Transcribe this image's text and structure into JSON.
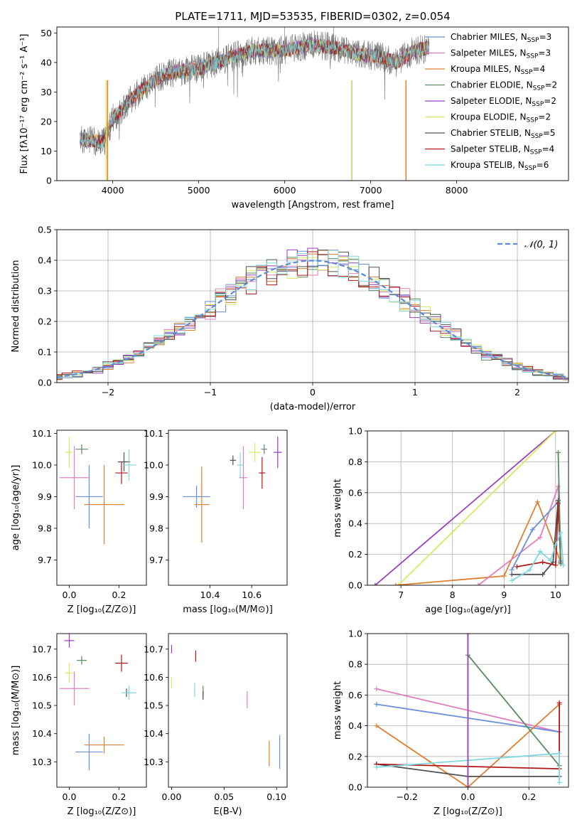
{
  "figure_title": "PLATE=1711, MJD=53535, FIBERID=0302, z=0.054",
  "chart_data": [
    {
      "id": "spectrum",
      "type": "line",
      "title": "PLATE=1711, MJD=53535, FIBERID=0302, z=0.054",
      "xlabel": "wavelength [Angstrom, rest frame]",
      "ylabel": "Flux [fλ10⁻¹⁷ erg cm⁻² s⁻¹ A⁻¹]",
      "xlim": [
        3350,
        9300
      ],
      "ylim": [
        0,
        52
      ],
      "xticks": [
        4000,
        5000,
        6000,
        7000,
        8000
      ],
      "yticks": [
        0,
        10,
        20,
        30,
        40,
        50
      ],
      "grid": false,
      "legend_position": "right",
      "data_range": [
        3620,
        7680
      ],
      "continuum": [
        [
          3620,
          14
        ],
        [
          3900,
          13
        ],
        [
          4000,
          21
        ],
        [
          4300,
          30
        ],
        [
          4600,
          36
        ],
        [
          5000,
          38
        ],
        [
          5200,
          40
        ],
        [
          5600,
          44
        ],
        [
          6000,
          44
        ],
        [
          6300,
          46
        ],
        [
          6600,
          45
        ],
        [
          6800,
          43
        ],
        [
          7100,
          42
        ],
        [
          7300,
          40
        ],
        [
          7500,
          44
        ],
        [
          7680,
          45
        ]
      ],
      "series": [
        {
          "name": "Chabrier MILES, N_SSP=3",
          "color": "#6a8fd8"
        },
        {
          "name": "Salpeter MILES, N_SSP=3",
          "color": "#e07fbf"
        },
        {
          "name": "Kroupa MILES, N_SSP=4",
          "color": "#e07f2f"
        },
        {
          "name": "Chabrier ELODIE, N_SSP=2",
          "color": "#5a8a5f"
        },
        {
          "name": "Salpeter ELODIE, N_SSP=2",
          "color": "#9a3fbf"
        },
        {
          "name": "Kroupa ELODIE, N_SSP=2",
          "color": "#d8e85f"
        },
        {
          "name": "Chabrier STELIB, N_SSP=5",
          "color": "#505050"
        },
        {
          "name": "Salpeter STELIB, N_SSP=4",
          "color": "#b01818"
        },
        {
          "name": "Kroupa STELIB, N_SSP=6",
          "color": "#7fd8e0"
        }
      ]
    },
    {
      "id": "residuals",
      "type": "line",
      "xlabel": "(data-model)/error",
      "ylabel": "Normed distribution",
      "xlim": [
        -2.5,
        2.5
      ],
      "ylim": [
        0,
        0.5
      ],
      "xticks": [
        -2,
        -1,
        0,
        1,
        2
      ],
      "yticks": [
        0,
        0.1,
        0.2,
        0.3,
        0.4,
        0.5
      ],
      "grid": true,
      "legend_position": "top-right",
      "legend_label": "𝒩(0, 1)",
      "normal_color": "#5b8ad8",
      "hist_colors": [
        "#6a8fd8",
        "#e07fbf",
        "#e07f2f",
        "#5a8a5f",
        "#9a3fbf",
        "#d8e85f",
        "#505050",
        "#b01818",
        "#7fd8e0"
      ],
      "bin_width": 0.1
    },
    {
      "id": "age-vs-Z",
      "type": "scatter",
      "xlabel": "Z [log₁₀(Z/Z⊙)]",
      "ylabel": "age  [log₁₀(age/yr)]",
      "xlim": [
        -0.05,
        0.31
      ],
      "ylim": [
        9.62,
        10.11
      ],
      "xticks": [
        0.0,
        0.2
      ],
      "yticks": [
        9.7,
        9.8,
        9.9,
        10.0,
        10.1
      ],
      "grid": false,
      "points": [
        {
          "color": "#6a8fd8",
          "x": 0.08,
          "y": 9.9,
          "xe": 0.11,
          "ye": 0.2
        },
        {
          "color": "#e07fbf",
          "x": 0.02,
          "y": 9.96,
          "xe": 0.12,
          "ye": 0.2
        },
        {
          "color": "#e07f2f",
          "x": 0.14,
          "y": 9.875,
          "xe": 0.16,
          "ye": 0.25
        },
        {
          "color": "#5a8a5f",
          "x": 0.05,
          "y": 10.05,
          "xe": 0.05,
          "ye": 0.03
        },
        {
          "color": "#9a3fbf",
          "x": 0.0,
          "y": 10.04,
          "xe": 0.0,
          "ye": 0.02
        },
        {
          "color": "#d8e85f",
          "x": 0.0,
          "y": 10.04,
          "xe": 0.03,
          "ye": 0.1
        },
        {
          "color": "#505050",
          "x": 0.22,
          "y": 10.01,
          "xe": 0.05,
          "ye": 0.06
        },
        {
          "color": "#b01818",
          "x": 0.21,
          "y": 9.975,
          "xe": 0.05,
          "ye": 0.07
        },
        {
          "color": "#7fd8e0",
          "x": 0.24,
          "y": 10.0,
          "xe": 0.06,
          "ye": 0.1
        }
      ]
    },
    {
      "id": "age-vs-mass",
      "type": "scatter",
      "xlabel": "mass [log₁₀(M/M⊙)]",
      "ylabel": "",
      "xlim": [
        10.2,
        10.77
      ],
      "ylim": [
        9.62,
        10.11
      ],
      "xticks": [
        10.4,
        10.6
      ],
      "yticks": [
        9.7,
        9.8,
        9.9,
        10.0,
        10.1
      ],
      "grid": false,
      "points": [
        {
          "color": "#6a8fd8",
          "x": 10.335,
          "y": 9.9,
          "xe": 0.13,
          "ye": 0.07
        },
        {
          "color": "#e07fbf",
          "x": 10.56,
          "y": 9.96,
          "xe": 0.04,
          "ye": 0.2
        },
        {
          "color": "#e07f2f",
          "x": 10.36,
          "y": 9.875,
          "xe": 0.07,
          "ye": 0.24
        },
        {
          "color": "#5a8a5f",
          "x": 10.66,
          "y": 10.05,
          "xe": 0.03,
          "ye": 0.03
        },
        {
          "color": "#9a3fbf",
          "x": 10.725,
          "y": 10.04,
          "xe": 0.04,
          "ye": 0.1
        },
        {
          "color": "#d8e85f",
          "x": 10.615,
          "y": 10.04,
          "xe": 0.06,
          "ye": 0.06
        },
        {
          "color": "#505050",
          "x": 10.51,
          "y": 10.015,
          "xe": 0.03,
          "ye": 0.03
        },
        {
          "color": "#b01818",
          "x": 10.65,
          "y": 9.975,
          "xe": 0.03,
          "ye": 0.1
        },
        {
          "color": "#7fd8e0",
          "x": 10.545,
          "y": 10.0,
          "xe": 0.03,
          "ye": 0.08
        }
      ]
    },
    {
      "id": "massweight-vs-age",
      "type": "line",
      "xlabel": "age  [log₁₀(age/yr)]",
      "ylabel": "mass weight",
      "xlim": [
        6.35,
        10.25
      ],
      "ylim": [
        0,
        1.0
      ],
      "xticks": [
        7,
        8,
        9,
        10
      ],
      "yticks": [
        0,
        0.2,
        0.4,
        0.6,
        0.8,
        1.0
      ],
      "grid": true,
      "series": [
        {
          "color": "#9a3fbf",
          "x": [
            6.5,
            10.0
          ],
          "y": [
            0.0,
            1.0
          ]
        },
        {
          "color": "#d8e85f",
          "x": [
            6.95,
            10.0
          ],
          "y": [
            0.0,
            1.0
          ]
        },
        {
          "color": "#e07f2f",
          "x": [
            6.9,
            9.0,
            9.65,
            10.1
          ],
          "y": [
            0.0,
            0.06,
            0.54,
            0.15
          ]
        },
        {
          "color": "#e07fbf",
          "x": [
            8.5,
            9.7,
            10.05,
            10.1
          ],
          "y": [
            0.0,
            0.31,
            0.64,
            0.15
          ]
        },
        {
          "color": "#6a8fd8",
          "x": [
            9.15,
            9.55,
            10.05,
            10.1
          ],
          "y": [
            0.1,
            0.36,
            0.54,
            0.16
          ]
        },
        {
          "color": "#505050",
          "x": [
            9.15,
            9.75,
            9.95,
            10.05,
            10.1
          ],
          "y": [
            0.07,
            0.07,
            0.15,
            0.55,
            0.14
          ]
        },
        {
          "color": "#b01818",
          "x": [
            9.25,
            9.75,
            10.0,
            10.05,
            10.1
          ],
          "y": [
            0.12,
            0.15,
            0.13,
            0.53,
            0.15
          ]
        },
        {
          "color": "#5a8a5f",
          "x": [
            10.05,
            10.1
          ],
          "y": [
            0.86,
            0.14
          ]
        },
        {
          "color": "#7fd8e0",
          "x": [
            9.15,
            9.5,
            9.7,
            9.9,
            10.0,
            10.1,
            10.15
          ],
          "y": [
            0.03,
            0.1,
            0.22,
            0.16,
            0.26,
            0.34,
            0.13
          ]
        }
      ]
    },
    {
      "id": "mass-vs-Z",
      "type": "scatter",
      "xlabel": "Z [log₁₀(Z/Z⊙)]",
      "ylabel": "mass [log₁₀(M/M⊙)]",
      "xlim": [
        -0.05,
        0.31
      ],
      "ylim": [
        10.21,
        10.755
      ],
      "xticks": [
        0.0,
        0.2
      ],
      "yticks": [
        10.3,
        10.4,
        10.5,
        10.6,
        10.7
      ],
      "grid": false,
      "points": [
        {
          "color": "#6a8fd8",
          "x": 0.08,
          "y": 10.335,
          "xe": 0.11,
          "ye": 0.13
        },
        {
          "color": "#e07fbf",
          "x": 0.02,
          "y": 10.56,
          "xe": 0.12,
          "ye": 0.12
        },
        {
          "color": "#e07f2f",
          "x": 0.14,
          "y": 10.36,
          "xe": 0.16,
          "ye": 0.06
        },
        {
          "color": "#5a8a5f",
          "x": 0.05,
          "y": 10.66,
          "xe": 0.04,
          "ye": 0.03
        },
        {
          "color": "#9a3fbf",
          "x": 0.0,
          "y": 10.73,
          "xe": 0.04,
          "ye": 0.05
        },
        {
          "color": "#d8e85f",
          "x": 0.0,
          "y": 10.615,
          "xe": 0.03,
          "ye": 0.07
        },
        {
          "color": "#505050",
          "x": 0.23,
          "y": 10.545,
          "xe": 0.0,
          "ye": 0.03
        },
        {
          "color": "#b01818",
          "x": 0.21,
          "y": 10.65,
          "xe": 0.05,
          "ye": 0.06
        },
        {
          "color": "#7fd8e0",
          "x": 0.24,
          "y": 10.545,
          "xe": 0.06,
          "ye": 0.05
        }
      ]
    },
    {
      "id": "mass-vs-EBV",
      "type": "scatter",
      "xlabel": "E(B-V)",
      "ylabel": "",
      "xlim": [
        -0.003,
        0.11
      ],
      "ylim": [
        10.21,
        10.755
      ],
      "xticks": [
        0.0,
        0.05,
        0.1
      ],
      "yticks": [
        10.3,
        10.4,
        10.5,
        10.6,
        10.7
      ],
      "grid": false,
      "points": [
        {
          "color": "#6a8fd8",
          "x": 0.103,
          "y": 10.335,
          "xe": 0.0,
          "ye": 0.12
        },
        {
          "color": "#e07fbf",
          "x": 0.072,
          "y": 10.52,
          "xe": 0.0,
          "ye": 0.06
        },
        {
          "color": "#e07f2f",
          "x": 0.093,
          "y": 10.33,
          "xe": 0.0,
          "ye": 0.09
        },
        {
          "color": "#5a8a5f",
          "x": 0.03,
          "y": 10.55,
          "xe": 0.0,
          "ye": 0.04
        },
        {
          "color": "#9a3fbf",
          "x": 0.0,
          "y": 10.7,
          "xe": 0.0,
          "ye": 0.03
        },
        {
          "color": "#d8e85f",
          "x": 0.0,
          "y": 10.58,
          "xe": 0.0,
          "ye": 0.04
        },
        {
          "color": "#505050",
          "x": 0.03,
          "y": 10.535,
          "xe": 0.0,
          "ye": 0.03
        },
        {
          "color": "#b01818",
          "x": 0.023,
          "y": 10.675,
          "xe": 0.0,
          "ye": 0.04
        },
        {
          "color": "#7fd8e0",
          "x": 0.022,
          "y": 10.555,
          "xe": 0.0,
          "ye": 0.05
        }
      ]
    },
    {
      "id": "massweight-vs-Z",
      "type": "line",
      "xlabel": "Z [log₁₀(Z/Z⊙)]",
      "ylabel": "mass weight",
      "xlim": [
        -0.33,
        0.33
      ],
      "ylim": [
        0,
        1.0
      ],
      "xticks": [
        -0.2,
        0.0,
        0.2
      ],
      "yticks": [
        0,
        0.2,
        0.4,
        0.6,
        0.8,
        1.0
      ],
      "grid": true,
      "series": [
        {
          "color": "#e07fbf",
          "x": [
            -0.3,
            0.3
          ],
          "y": [
            0.64,
            0.36
          ]
        },
        {
          "color": "#6a8fd8",
          "x": [
            -0.3,
            0.3
          ],
          "y": [
            0.54,
            0.36
          ]
        },
        {
          "color": "#e07f2f",
          "x": [
            -0.3,
            0.0,
            0.3
          ],
          "y": [
            0.4,
            0.0,
            0.54
          ]
        },
        {
          "color": "#5a8a5f",
          "x": [
            0.0,
            0.3
          ],
          "y": [
            0.86,
            0.14
          ]
        },
        {
          "color": "#d8e85f",
          "x": [
            0.0,
            0.0
          ],
          "y": [
            0.0,
            1.0
          ]
        },
        {
          "color": "#505050",
          "x": [
            -0.3,
            0.0,
            0.3
          ],
          "y": [
            0.15,
            0.07,
            0.07
          ]
        },
        {
          "color": "#b01818",
          "x": [
            -0.3,
            0.3,
            0.3,
            0.3
          ],
          "y": [
            0.15,
            0.12,
            0.55,
            0.12
          ]
        },
        {
          "color": "#7fd8e0",
          "x": [
            -0.3,
            0.3,
            0.3
          ],
          "y": [
            0.13,
            0.22,
            0.03
          ]
        },
        {
          "color": "#9a3fbf",
          "x": [
            0.0,
            0.0
          ],
          "y": [
            0.0,
            1.0
          ]
        }
      ]
    }
  ]
}
